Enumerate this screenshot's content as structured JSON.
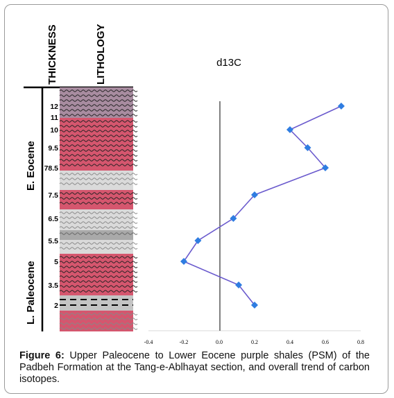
{
  "figure": {
    "header_thickness": "THICKNESS",
    "header_lithology": "LITHOLOGY",
    "epochs": [
      "E. Eocene",
      "L. Paleocene"
    ],
    "thickness_labels": [
      "12",
      "11",
      "10",
      "9.5",
      "78.5",
      "7.5",
      "6.5",
      "5.5",
      "5",
      "3.5",
      "2"
    ],
    "caption_label": "Figure 6:",
    "caption_text": " Upper Paleocene to Lower Eocene purple shales (PSM) of the Padbeh Formation at the Tang-e-Ablhayat section, and overall trend of carbon isotopes."
  },
  "chart_data": {
    "type": "line",
    "title": "d13C",
    "xlabel": "",
    "ylabel": "",
    "xlim": [
      -0.4,
      0.8
    ],
    "x_ticks": [
      "-0.4",
      "-0.2",
      "0.0",
      "0.2",
      "0.4",
      "0.6",
      "0.8"
    ],
    "series": [
      {
        "points": [
          {
            "x": 0.69,
            "level": "12"
          },
          {
            "x": 0.4,
            "level": "10"
          },
          {
            "x": 0.5,
            "level": "9.5"
          },
          {
            "x": 0.6,
            "level": "78.5"
          },
          {
            "x": 0.2,
            "level": "7.5"
          },
          {
            "x": 0.08,
            "level": "6.5"
          },
          {
            "x": -0.12,
            "level": "5.5"
          },
          {
            "x": -0.2,
            "level": "5"
          },
          {
            "x": 0.11,
            "level": "3.5"
          },
          {
            "x": 0.2,
            "level": "2"
          }
        ]
      }
    ],
    "line_color": "#6a5acd",
    "marker_color": "#2f7de1",
    "colors": {
      "purple_shale": "#a88ca0",
      "red_shale": "#d5566e",
      "light_grey": "#d9d9d9",
      "mid_grey": "#a9a9a9"
    }
  }
}
